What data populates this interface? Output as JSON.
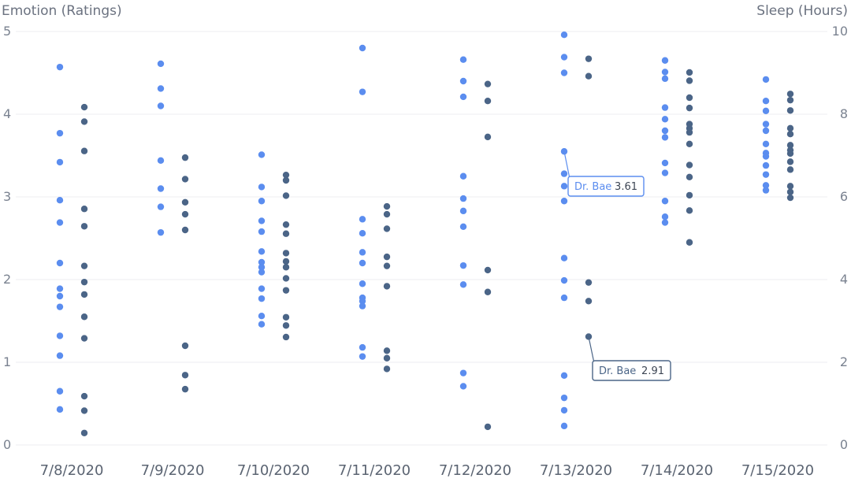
{
  "chart_data": {
    "type": "scatter",
    "categories": [
      "7/8/2020",
      "7/9/2020",
      "7/10/2020",
      "7/11/2020",
      "7/12/2020",
      "7/13/2020",
      "7/14/2020",
      "7/15/2020"
    ],
    "y_left": {
      "label": "Emotion (Ratings)",
      "range": [
        0,
        5
      ],
      "ticks": [
        "0",
        "1",
        "2",
        "3",
        "4",
        "5"
      ]
    },
    "y_right": {
      "label": "Sleep (Hours)",
      "range": [
        0,
        10
      ],
      "ticks": [
        "0",
        "2",
        "4",
        "6",
        "8",
        "10"
      ]
    },
    "grid": true,
    "series": [
      {
        "axis": "left",
        "color": "#5b8def",
        "values": [
          [
            4.57,
            3.77,
            3.42,
            2.96,
            2.69,
            2.2,
            1.89,
            1.8,
            1.67,
            1.32,
            1.08,
            0.65,
            0.43
          ],
          [
            4.61,
            4.31,
            2.57,
            4.1,
            3.44,
            3.1,
            2.88
          ],
          [
            3.51,
            3.12,
            2.95,
            2.71,
            2.58,
            2.34,
            2.21,
            2.15,
            2.09,
            1.89,
            1.77,
            1.56,
            1.46
          ],
          [
            4.8,
            4.27,
            2.73,
            2.56,
            2.33,
            2.2,
            1.95,
            1.78,
            1.74,
            1.68,
            1.18,
            1.07
          ],
          [
            4.66,
            4.4,
            4.21,
            3.25,
            2.98,
            2.83,
            2.64,
            2.17,
            1.94,
            0.87,
            0.71
          ],
          [
            4.96,
            4.69,
            4.5,
            3.55,
            3.28,
            3.13,
            2.95,
            2.26,
            1.99,
            1.78,
            0.84,
            0.57,
            0.42,
            0.23
          ],
          [
            4.65,
            4.51,
            4.43,
            4.08,
            3.94,
            3.8,
            3.72,
            3.41,
            3.29,
            2.95,
            2.76,
            2.69
          ],
          [
            4.42,
            4.16,
            4.04,
            3.88,
            3.8,
            3.64,
            3.53,
            3.49,
            3.38,
            3.27,
            3.14,
            3.08
          ]
        ]
      },
      {
        "axis": "right",
        "color": "#4b6587",
        "values": [
          [
            8.17,
            7.82,
            7.11,
            5.71,
            5.29,
            4.33,
            3.94,
            3.64,
            3.1,
            2.58,
            1.18,
            0.83,
            0.29
          ],
          [
            6.95,
            6.43,
            5.87,
            5.58,
            5.2,
            2.4,
            1.69,
            1.35
          ],
          [
            6.53,
            6.4,
            6.03,
            5.33,
            5.11,
            4.64,
            4.44,
            4.3,
            4.03,
            3.74,
            3.09,
            2.89,
            2.61
          ],
          [
            5.77,
            5.58,
            5.23,
            4.55,
            4.33,
            3.84,
            2.28,
            2.1,
            1.84
          ],
          [
            8.73,
            8.32,
            7.45,
            4.23,
            3.7,
            0.44
          ],
          [
            9.34,
            8.92,
            3.93,
            3.48,
            2.62
          ],
          [
            9.01,
            8.81,
            8.4,
            8.15,
            7.76,
            7.66,
            7.56,
            7.28,
            6.77,
            6.48,
            6.04,
            5.67,
            4.9
          ],
          [
            8.49,
            8.34,
            8.09,
            7.66,
            7.52,
            7.25,
            7.13,
            7.05,
            6.85,
            6.66,
            6.26,
            6.12,
            5.98
          ]
        ]
      }
    ],
    "annotations": [
      {
        "label": "Dr. Bae",
        "value": "3.61",
        "color": "#5b8def"
      },
      {
        "label": "Dr. Bae",
        "value": "2.91",
        "color": "#4b6587"
      }
    ]
  }
}
